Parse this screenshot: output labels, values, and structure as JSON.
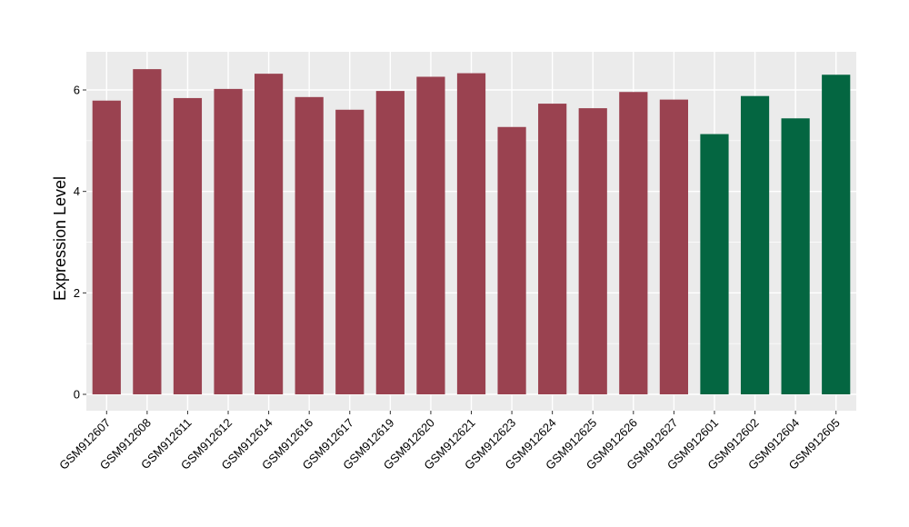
{
  "chart_data": {
    "type": "bar",
    "title": "",
    "xlabel": "",
    "ylabel": "Expression Level",
    "ylim": [
      0,
      6.72
    ],
    "yticks": [
      0,
      2,
      4,
      6
    ],
    "grid": true,
    "legend": "none",
    "categories": [
      "GSM912607",
      "GSM912608",
      "GSM912611",
      "GSM912612",
      "GSM912614",
      "GSM912616",
      "GSM912617",
      "GSM912619",
      "GSM912620",
      "GSM912621",
      "GSM912623",
      "GSM912624",
      "GSM912625",
      "GSM912626",
      "GSM912627",
      "GSM912601",
      "GSM912602",
      "GSM912604",
      "GSM912605"
    ],
    "values": [
      5.79,
      6.41,
      5.84,
      6.02,
      6.32,
      5.86,
      5.61,
      5.98,
      6.26,
      6.33,
      5.27,
      5.73,
      5.64,
      5.96,
      5.81,
      5.13,
      5.88,
      5.44,
      6.3
    ],
    "groups": [
      "a",
      "a",
      "a",
      "a",
      "a",
      "a",
      "a",
      "a",
      "a",
      "a",
      "a",
      "a",
      "a",
      "a",
      "a",
      "b",
      "b",
      "b",
      "b"
    ],
    "colors": {
      "a": "#9a4250",
      "b": "#046641"
    },
    "panel_background": "#ebebeb",
    "grid_color": "#ffffff"
  }
}
